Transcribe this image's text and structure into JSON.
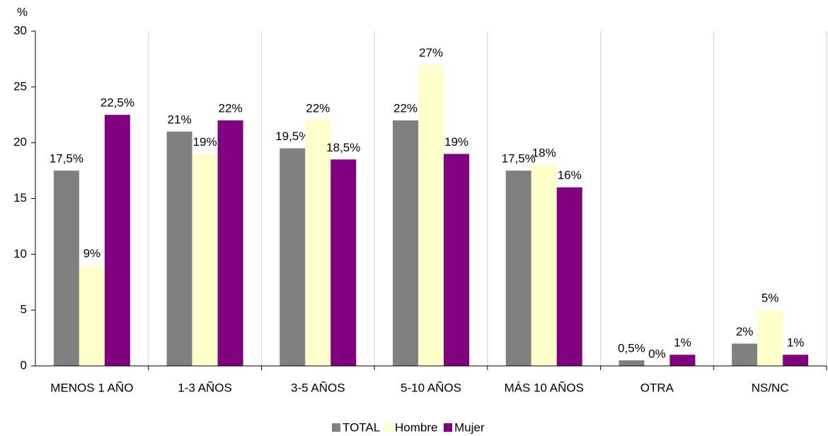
{
  "chart_data": {
    "type": "bar",
    "y_label": "%",
    "categories": [
      "MENOS 1 AÑO",
      "1-3 AÑOS",
      "3-5 AÑOS",
      "5-10 AÑOS",
      "MÁS 10 AÑOS",
      "OTRA",
      "NS/NC"
    ],
    "series": [
      {
        "name": "TOTAL",
        "color": "#808080",
        "values": [
          17.5,
          21,
          19.5,
          22,
          17.5,
          0.5,
          2
        ],
        "value_labels": [
          "17,5%",
          "21%",
          "19,5%",
          "22%",
          "17,5%",
          "0,5%",
          "2%"
        ]
      },
      {
        "name": "Hombre",
        "color": "#ffffcc",
        "values": [
          9,
          19,
          22,
          27,
          18,
          0,
          5
        ],
        "value_labels": [
          "9%",
          "19%",
          "22%",
          "27%",
          "18%",
          "0%",
          "5%"
        ]
      },
      {
        "name": "Mujer",
        "color": "#800080",
        "values": [
          22.5,
          22,
          18.5,
          19,
          16,
          1,
          1
        ],
        "value_labels": [
          "22,5%",
          "22%",
          "18,5%",
          "19%",
          "16%",
          "1%",
          "1%"
        ]
      }
    ],
    "ylim": [
      0,
      30
    ],
    "yticks": [
      0,
      5,
      10,
      15,
      20,
      25,
      30
    ],
    "legend": "bottom"
  }
}
